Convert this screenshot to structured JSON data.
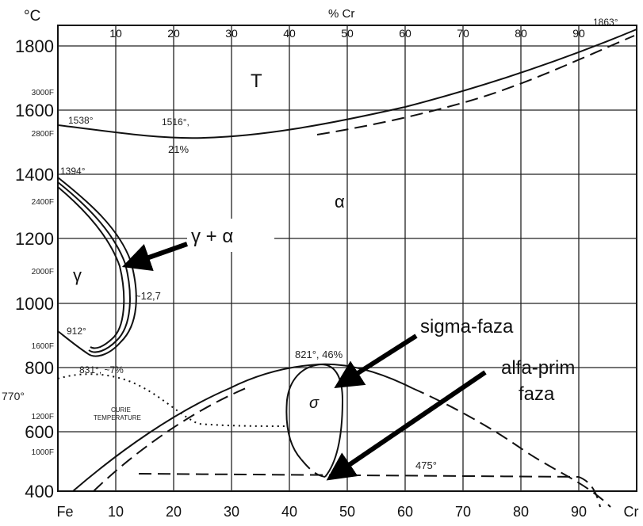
{
  "axes": {
    "x_top_unit": "% Cr",
    "y_unit": "°C",
    "x_ticks": [
      "10",
      "20",
      "30",
      "40",
      "50",
      "60",
      "70",
      "80",
      "90"
    ],
    "x_bottom_ends": {
      "left": "Fe",
      "right": "Cr"
    },
    "y_ticks": [
      "1800",
      "1600",
      "1400",
      "1200",
      "1000",
      "800",
      "600",
      "400"
    ],
    "f_ticks": [
      "3000F",
      "2800F",
      "2400F",
      "2000F",
      "1600F",
      "1200F",
      "1000F"
    ]
  },
  "annotations": {
    "t_1863": "1863°",
    "t_1538": "1538°",
    "t_1516": "1516°,",
    "pct_21": "21%",
    "t_1394": "1394°",
    "t_912": "912°",
    "t_831": "831°, ~7%",
    "t_770": "770°",
    "pct_12_7": "~12,7",
    "t_821": "821°, 46%",
    "t_475": "475°",
    "curie_1": "CURIE",
    "curie_2": "TEMPERATURE"
  },
  "regions": {
    "liquid": "T",
    "alpha": "α",
    "gamma": "γ",
    "sigma": "σ",
    "gamma_alpha": "γ + α"
  },
  "callouts": {
    "sigma_label": "sigma-faza",
    "alfa_prim_1": "alfa-prim",
    "alfa_prim_2": "faza"
  }
}
